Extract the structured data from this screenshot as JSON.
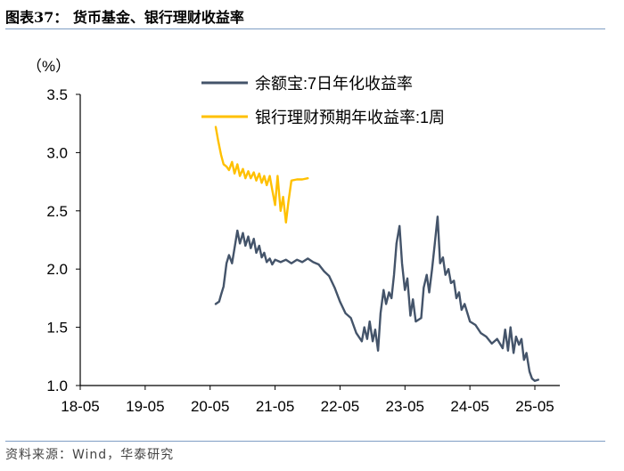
{
  "header": {
    "title": "图表37：  货币基金、银行理财收益率"
  },
  "footer": {
    "source": "资料来源：Wind，华泰研究"
  },
  "colors": {
    "rule": "#7f9ec4",
    "series_1": "#44546a",
    "series_2": "#ffc000"
  },
  "chart_data": {
    "type": "line",
    "title": "",
    "ylabel": "（%）",
    "xlabel": "",
    "ylim": [
      1.0,
      3.5
    ],
    "yticks": [
      "1.0",
      "1.5",
      "2.0",
      "2.5",
      "3.0",
      "3.5"
    ],
    "xticks": [
      "18-05",
      "19-05",
      "20-05",
      "21-05",
      "22-05",
      "23-05",
      "24-05",
      "25-05"
    ],
    "x_is_date_axis": true,
    "x_range": [
      "2018-05",
      "2025-06"
    ],
    "grid": false,
    "legend_placement": "top-center",
    "series": [
      {
        "name": "余额宝:7日年化收益率",
        "color": "#44546a",
        "points": [
          [
            "2020-06",
            1.7
          ],
          [
            "2020-06-20",
            1.72
          ],
          [
            "2020-07",
            1.78
          ],
          [
            "2020-07-15",
            1.85
          ],
          [
            "2020-08",
            2.05
          ],
          [
            "2020-08-15",
            2.12
          ],
          [
            "2020-09",
            2.05
          ],
          [
            "2020-09-15",
            2.18
          ],
          [
            "2020-10",
            2.33
          ],
          [
            "2020-10-15",
            2.22
          ],
          [
            "2020-11",
            2.31
          ],
          [
            "2020-11-15",
            2.2
          ],
          [
            "2020-12",
            2.28
          ],
          [
            "2020-12-15",
            2.18
          ],
          [
            "2021-01",
            2.26
          ],
          [
            "2021-01-15",
            2.14
          ],
          [
            "2021-02",
            2.2
          ],
          [
            "2021-02-15",
            2.1
          ],
          [
            "2021-03",
            2.14
          ],
          [
            "2021-03-15",
            2.06
          ],
          [
            "2021-04",
            2.09
          ],
          [
            "2021-04-15",
            2.04
          ],
          [
            "2021-05",
            2.08
          ],
          [
            "2021-06",
            2.06
          ],
          [
            "2021-07",
            2.08
          ],
          [
            "2021-08",
            2.05
          ],
          [
            "2021-09",
            2.08
          ],
          [
            "2021-10",
            2.06
          ],
          [
            "2021-11",
            2.09
          ],
          [
            "2021-12",
            2.06
          ],
          [
            "2022-01",
            2.04
          ],
          [
            "2022-02",
            1.98
          ],
          [
            "2022-03",
            1.94
          ],
          [
            "2022-04",
            1.84
          ],
          [
            "2022-05",
            1.72
          ],
          [
            "2022-06",
            1.62
          ],
          [
            "2022-07",
            1.58
          ],
          [
            "2022-08",
            1.45
          ],
          [
            "2022-09",
            1.38
          ],
          [
            "2022-09-15",
            1.5
          ],
          [
            "2022-10",
            1.4
          ],
          [
            "2022-10-15",
            1.55
          ],
          [
            "2022-11",
            1.38
          ],
          [
            "2022-11-15",
            1.48
          ],
          [
            "2022-12",
            1.3
          ],
          [
            "2022-12-15",
            1.62
          ],
          [
            "2023-01",
            1.82
          ],
          [
            "2023-01-15",
            1.7
          ],
          [
            "2023-02",
            1.8
          ],
          [
            "2023-02-15",
            1.75
          ],
          [
            "2023-03",
            1.95
          ],
          [
            "2023-03-15",
            2.22
          ],
          [
            "2023-04",
            2.37
          ],
          [
            "2023-04-15",
            2.05
          ],
          [
            "2023-05",
            1.82
          ],
          [
            "2023-05-15",
            1.92
          ],
          [
            "2023-06",
            1.6
          ],
          [
            "2023-06-15",
            1.74
          ],
          [
            "2023-07",
            1.55
          ],
          [
            "2023-08",
            1.58
          ],
          [
            "2023-08-15",
            1.84
          ],
          [
            "2023-09",
            1.95
          ],
          [
            "2023-09-15",
            1.8
          ],
          [
            "2023-10",
            2.0
          ],
          [
            "2023-10-15",
            2.2
          ],
          [
            "2023-11",
            2.45
          ],
          [
            "2023-11-15",
            2.05
          ],
          [
            "2023-12",
            2.1
          ],
          [
            "2023-12-15",
            1.95
          ],
          [
            "2024-01",
            2.0
          ],
          [
            "2024-01-15",
            1.88
          ],
          [
            "2024-02",
            1.9
          ],
          [
            "2024-02-15",
            1.75
          ],
          [
            "2024-03",
            1.8
          ],
          [
            "2024-03-15",
            1.65
          ],
          [
            "2024-04",
            1.7
          ],
          [
            "2024-05",
            1.55
          ],
          [
            "2024-06",
            1.52
          ],
          [
            "2024-07",
            1.45
          ],
          [
            "2024-08",
            1.42
          ],
          [
            "2024-09",
            1.36
          ],
          [
            "2024-10",
            1.4
          ],
          [
            "2024-11",
            1.32
          ],
          [
            "2024-11-15",
            1.48
          ],
          [
            "2024-12",
            1.3
          ],
          [
            "2024-12-15",
            1.5
          ],
          [
            "2025-01",
            1.28
          ],
          [
            "2025-01-15",
            1.42
          ],
          [
            "2025-02",
            1.35
          ],
          [
            "2025-02-15",
            1.4
          ],
          [
            "2025-03",
            1.22
          ],
          [
            "2025-03-15",
            1.28
          ],
          [
            "2025-04",
            1.12
          ],
          [
            "2025-04-15",
            1.06
          ],
          [
            "2025-05",
            1.04
          ],
          [
            "2025-05-20",
            1.05
          ]
        ]
      },
      {
        "name": "银行理财预期年收益率:1周",
        "color": "#ffc000",
        "points": [
          [
            "2020-06",
            3.22
          ],
          [
            "2020-06-15",
            3.1
          ],
          [
            "2020-07",
            2.98
          ],
          [
            "2020-07-15",
            2.9
          ],
          [
            "2020-08",
            2.88
          ],
          [
            "2020-08-15",
            2.85
          ],
          [
            "2020-09",
            2.92
          ],
          [
            "2020-09-15",
            2.82
          ],
          [
            "2020-10",
            2.9
          ],
          [
            "2020-10-15",
            2.8
          ],
          [
            "2020-11",
            2.86
          ],
          [
            "2020-11-15",
            2.78
          ],
          [
            "2020-12",
            2.84
          ],
          [
            "2020-12-15",
            2.78
          ],
          [
            "2021-01",
            2.83
          ],
          [
            "2021-01-15",
            2.76
          ],
          [
            "2021-02",
            2.82
          ],
          [
            "2021-02-15",
            2.74
          ],
          [
            "2021-03",
            2.8
          ],
          [
            "2021-03-15",
            2.72
          ],
          [
            "2021-04",
            2.8
          ],
          [
            "2021-04-15",
            2.68
          ],
          [
            "2021-05",
            2.55
          ],
          [
            "2021-05-15",
            2.8
          ],
          [
            "2021-06",
            2.5
          ],
          [
            "2021-06-15",
            2.62
          ],
          [
            "2021-07",
            2.4
          ],
          [
            "2021-07-15",
            2.58
          ],
          [
            "2021-08",
            2.76
          ],
          [
            "2021-09",
            2.77
          ],
          [
            "2021-10",
            2.77
          ],
          [
            "2021-11",
            2.78
          ]
        ]
      }
    ]
  }
}
